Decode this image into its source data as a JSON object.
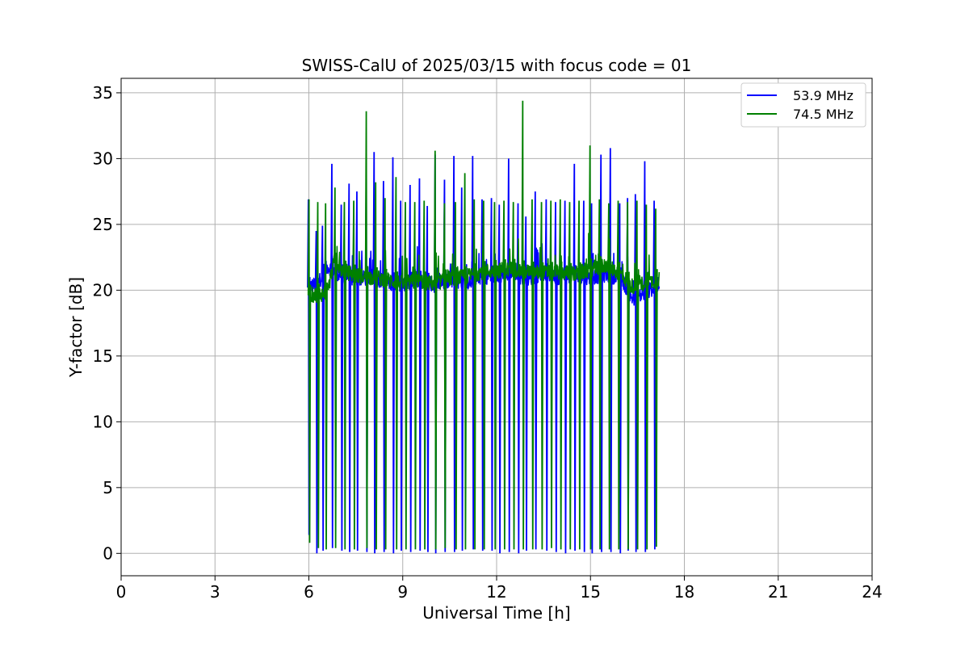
{
  "chart_data": {
    "type": "line",
    "title": "SWISS-CalU of 2025/03/15 with focus code = 01",
    "xlabel": "Universal Time [h]",
    "ylabel": "Y-factor [dB]",
    "xlim": [
      0,
      24
    ],
    "ylim": [
      -1.7,
      36.1
    ],
    "xticks": [
      0,
      3,
      6,
      9,
      12,
      15,
      18,
      21,
      24
    ],
    "yticks": [
      0,
      5,
      10,
      15,
      20,
      25,
      30,
      35
    ],
    "grid": true,
    "legend_position": "top-right",
    "series": [
      {
        "name": "53.9 MHz",
        "color": "#0000ff",
        "baseline": [
          [
            6.0,
            20.2
          ],
          [
            6.3,
            20.6
          ],
          [
            6.6,
            21.8
          ],
          [
            7.0,
            21.2
          ],
          [
            7.5,
            20.8
          ],
          [
            8.0,
            21.0
          ],
          [
            8.5,
            20.6
          ],
          [
            9.0,
            20.5
          ],
          [
            9.5,
            20.7
          ],
          [
            10.0,
            20.4
          ],
          [
            10.5,
            20.8
          ],
          [
            11.0,
            20.6
          ],
          [
            11.5,
            21.0
          ],
          [
            12.0,
            21.1
          ],
          [
            12.5,
            21.2
          ],
          [
            13.0,
            20.9
          ],
          [
            13.5,
            21.3
          ],
          [
            14.0,
            21.0
          ],
          [
            14.5,
            21.1
          ],
          [
            15.0,
            21.0
          ],
          [
            15.5,
            21.2
          ],
          [
            16.0,
            20.9
          ],
          [
            16.3,
            19.4
          ],
          [
            16.7,
            19.6
          ],
          [
            17.0,
            20.2
          ],
          [
            17.2,
            20.4
          ]
        ],
        "spikes": [
          [
            6.0,
            26.9,
            1.4
          ],
          [
            6.25,
            24.5,
            0.0
          ],
          [
            6.45,
            24.9,
            0.2
          ],
          [
            6.75,
            29.6,
            0.4
          ],
          [
            7.05,
            26.5,
            0.2
          ],
          [
            7.3,
            28.1,
            0.1
          ],
          [
            7.55,
            27.5,
            0.2
          ],
          [
            7.85,
            29.4,
            0.1
          ],
          [
            8.1,
            30.5,
            0.0
          ],
          [
            8.4,
            28.3,
            0.1
          ],
          [
            8.7,
            30.1,
            0.0
          ],
          [
            8.95,
            26.8,
            0.2
          ],
          [
            9.25,
            28.0,
            0.1
          ],
          [
            9.55,
            28.5,
            0.2
          ],
          [
            9.8,
            26.4,
            0.1
          ],
          [
            10.05,
            30.3,
            0.0
          ],
          [
            10.35,
            28.4,
            0.1
          ],
          [
            10.65,
            30.2,
            0.1
          ],
          [
            10.9,
            27.8,
            0.2
          ],
          [
            11.25,
            30.2,
            0.3
          ],
          [
            11.55,
            26.9,
            0.2
          ],
          [
            11.85,
            27.0,
            0.2
          ],
          [
            12.1,
            26.5,
            0.0
          ],
          [
            12.4,
            30.0,
            0.1
          ],
          [
            12.7,
            26.6,
            0.0
          ],
          [
            12.95,
            25.6,
            0.2
          ],
          [
            13.25,
            27.5,
            0.3
          ],
          [
            13.6,
            26.9,
            0.2
          ],
          [
            13.9,
            26.7,
            0.1
          ],
          [
            14.2,
            26.8,
            0.0
          ],
          [
            14.5,
            29.6,
            0.2
          ],
          [
            14.8,
            26.8,
            0.1
          ],
          [
            15.05,
            26.6,
            0.0
          ],
          [
            15.35,
            30.3,
            0.1
          ],
          [
            15.65,
            30.8,
            0.1
          ],
          [
            15.95,
            26.6,
            0.0
          ],
          [
            16.2,
            27.0,
            0.2
          ],
          [
            16.45,
            27.3,
            0.1
          ],
          [
            16.75,
            29.8,
            0.1
          ],
          [
            17.05,
            26.8,
            0.3
          ]
        ]
      },
      {
        "name": "74.5 MHz",
        "color": "#008000",
        "baseline": [
          [
            6.0,
            19.6
          ],
          [
            6.3,
            19.7
          ],
          [
            6.6,
            19.8
          ],
          [
            6.8,
            22.2
          ],
          [
            7.0,
            21.6
          ],
          [
            7.5,
            21.1
          ],
          [
            8.0,
            21.0
          ],
          [
            8.5,
            20.8
          ],
          [
            9.0,
            20.5
          ],
          [
            9.5,
            20.7
          ],
          [
            10.0,
            20.5
          ],
          [
            10.5,
            20.9
          ],
          [
            11.0,
            21.0
          ],
          [
            11.5,
            21.4
          ],
          [
            12.0,
            21.5
          ],
          [
            12.5,
            21.6
          ],
          [
            13.0,
            21.4
          ],
          [
            13.5,
            21.3
          ],
          [
            14.0,
            21.4
          ],
          [
            14.5,
            21.2
          ],
          [
            15.0,
            21.6
          ],
          [
            15.5,
            21.9
          ],
          [
            16.0,
            21.2
          ],
          [
            16.3,
            20.3
          ],
          [
            16.7,
            20.5
          ],
          [
            17.0,
            20.7
          ],
          [
            17.2,
            20.9
          ]
        ],
        "spikes": [
          [
            6.02,
            26.9,
            0.8
          ],
          [
            6.3,
            26.7,
            0.4
          ],
          [
            6.55,
            26.6,
            0.3
          ],
          [
            6.85,
            27.8,
            0.4
          ],
          [
            7.15,
            26.7,
            0.3
          ],
          [
            7.45,
            26.8,
            0.3
          ],
          [
            7.85,
            33.6,
            0.4
          ],
          [
            8.15,
            28.2,
            0.3
          ],
          [
            8.45,
            27.0,
            0.3
          ],
          [
            8.8,
            28.6,
            0.3
          ],
          [
            9.1,
            26.7,
            0.3
          ],
          [
            9.4,
            26.7,
            0.3
          ],
          [
            9.7,
            26.8,
            0.3
          ],
          [
            10.05,
            30.6,
            0.3
          ],
          [
            10.35,
            26.6,
            0.4
          ],
          [
            10.7,
            26.7,
            0.3
          ],
          [
            11.0,
            28.9,
            0.3
          ],
          [
            11.3,
            26.9,
            0.3
          ],
          [
            11.6,
            26.8,
            0.3
          ],
          [
            11.95,
            26.7,
            0.3
          ],
          [
            12.25,
            26.8,
            0.3
          ],
          [
            12.55,
            26.7,
            0.3
          ],
          [
            12.85,
            34.4,
            0.3
          ],
          [
            13.15,
            26.9,
            0.3
          ],
          [
            13.45,
            26.7,
            0.3
          ],
          [
            13.75,
            26.8,
            0.4
          ],
          [
            14.05,
            26.9,
            0.3
          ],
          [
            14.35,
            26.7,
            0.3
          ],
          [
            14.65,
            26.8,
            0.3
          ],
          [
            15.0,
            31.0,
            0.3
          ],
          [
            15.3,
            26.9,
            0.3
          ],
          [
            15.6,
            26.6,
            0.3
          ],
          [
            15.9,
            26.8,
            0.3
          ],
          [
            16.2,
            26.7,
            0.3
          ],
          [
            16.5,
            26.8,
            0.3
          ],
          [
            16.8,
            26.5,
            0.3
          ],
          [
            17.1,
            26.2,
            0.5
          ]
        ]
      }
    ]
  }
}
